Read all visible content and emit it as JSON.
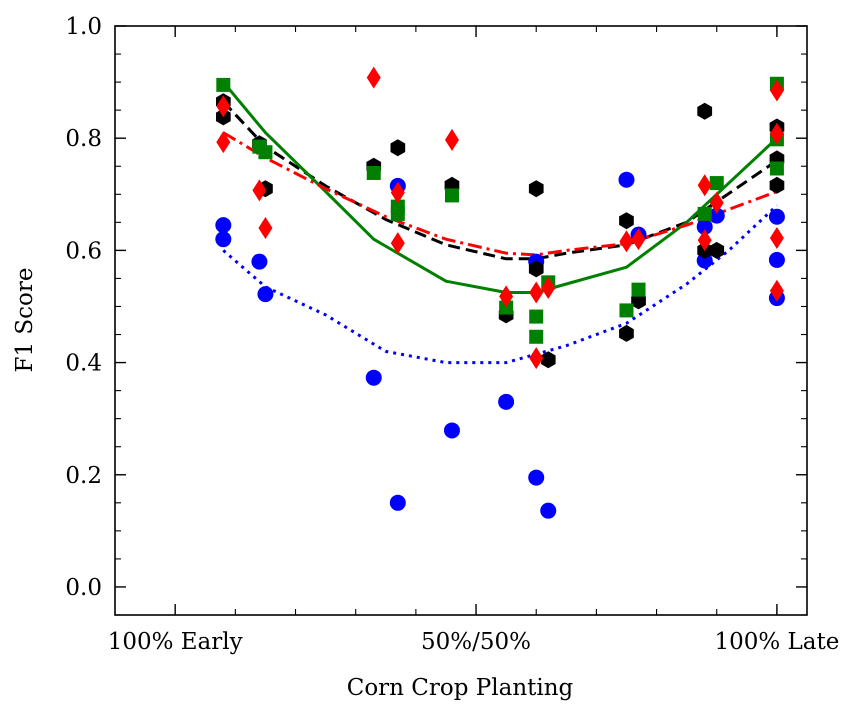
{
  "chart_data": {
    "type": "scatter",
    "xlabel": "Corn Crop Planting",
    "ylabel": "F1 Score",
    "xlim": [
      -0.1,
      1.05
    ],
    "ylim": [
      -0.05,
      1.0
    ],
    "xticks": [
      {
        "value": 0.0,
        "label": "100% Early"
      },
      {
        "value": 0.5,
        "label": "50%/50%"
      },
      {
        "value": 1.0,
        "label": "100% Late"
      }
    ],
    "yticks": [
      {
        "value": 0.0,
        "label": "0.0"
      },
      {
        "value": 0.2,
        "label": "0.2"
      },
      {
        "value": 0.4,
        "label": "0.4"
      },
      {
        "value": 0.6,
        "label": "0.6"
      },
      {
        "value": 0.8,
        "label": "0.8"
      },
      {
        "value": 1.0,
        "label": "1.0"
      }
    ],
    "grid": false,
    "series": [
      {
        "name": "blue",
        "color": "#0000ff",
        "marker": "circle",
        "points": [
          [
            0.08,
            0.645
          ],
          [
            0.08,
            0.62
          ],
          [
            0.14,
            0.58
          ],
          [
            0.15,
            0.522
          ],
          [
            0.33,
            0.373
          ],
          [
            0.37,
            0.715
          ],
          [
            0.37,
            0.15
          ],
          [
            0.46,
            0.279
          ],
          [
            0.55,
            0.33
          ],
          [
            0.6,
            0.195
          ],
          [
            0.6,
            0.58
          ],
          [
            0.62,
            0.136
          ],
          [
            0.75,
            0.726
          ],
          [
            0.77,
            0.628
          ],
          [
            0.88,
            0.582
          ],
          [
            0.88,
            0.642
          ],
          [
            0.9,
            0.662
          ],
          [
            1.0,
            0.66
          ],
          [
            1.0,
            0.583
          ],
          [
            1.0,
            0.515
          ]
        ],
        "trend": {
          "style": "dotted",
          "x": [
            0.08,
            0.15,
            0.25,
            0.35,
            0.45,
            0.55,
            0.65,
            0.75,
            0.85,
            0.92,
            1.0
          ],
          "y": [
            0.6,
            0.535,
            0.485,
            0.42,
            0.4,
            0.4,
            0.43,
            0.47,
            0.54,
            0.6,
            0.68
          ]
        }
      },
      {
        "name": "black",
        "color": "#000000",
        "marker": "hexagon",
        "points": [
          [
            0.08,
            0.865
          ],
          [
            0.08,
            0.838
          ],
          [
            0.14,
            0.79
          ],
          [
            0.15,
            0.71
          ],
          [
            0.33,
            0.75
          ],
          [
            0.37,
            0.783
          ],
          [
            0.46,
            0.716
          ],
          [
            0.55,
            0.485
          ],
          [
            0.6,
            0.71
          ],
          [
            0.6,
            0.567
          ],
          [
            0.62,
            0.405
          ],
          [
            0.75,
            0.653
          ],
          [
            0.75,
            0.452
          ],
          [
            0.77,
            0.51
          ],
          [
            0.88,
            0.848
          ],
          [
            0.88,
            0.6
          ],
          [
            0.9,
            0.6
          ],
          [
            1.0,
            0.82
          ],
          [
            1.0,
            0.763
          ],
          [
            1.0,
            0.716
          ]
        ],
        "trend": {
          "style": "dashed",
          "x": [
            0.08,
            0.15,
            0.25,
            0.35,
            0.45,
            0.55,
            0.6,
            0.65,
            0.75,
            0.85,
            1.0
          ],
          "y": [
            0.865,
            0.785,
            0.715,
            0.655,
            0.61,
            0.585,
            0.585,
            0.595,
            0.61,
            0.65,
            0.76
          ]
        }
      },
      {
        "name": "green",
        "color": "#008000",
        "marker": "square",
        "points": [
          [
            0.08,
            0.895
          ],
          [
            0.14,
            0.785
          ],
          [
            0.15,
            0.775
          ],
          [
            0.33,
            0.738
          ],
          [
            0.37,
            0.678
          ],
          [
            0.37,
            0.665
          ],
          [
            0.46,
            0.698
          ],
          [
            0.55,
            0.498
          ],
          [
            0.6,
            0.482
          ],
          [
            0.6,
            0.446
          ],
          [
            0.62,
            0.543
          ],
          [
            0.75,
            0.493
          ],
          [
            0.77,
            0.53
          ],
          [
            0.88,
            0.665
          ],
          [
            0.9,
            0.72
          ],
          [
            1.0,
            0.897
          ],
          [
            1.0,
            0.798
          ],
          [
            1.0,
            0.746
          ]
        ],
        "trend": {
          "style": "solid",
          "x": [
            0.08,
            0.15,
            0.25,
            0.33,
            0.37,
            0.45,
            0.55,
            0.6,
            0.65,
            0.75,
            0.85,
            1.0
          ],
          "y": [
            0.9,
            0.81,
            0.705,
            0.62,
            0.595,
            0.545,
            0.525,
            0.525,
            0.54,
            0.57,
            0.65,
            0.8
          ]
        }
      },
      {
        "name": "red",
        "color": "#ff0000",
        "marker": "diamond",
        "points": [
          [
            0.08,
            0.857
          ],
          [
            0.08,
            0.793
          ],
          [
            0.14,
            0.707
          ],
          [
            0.15,
            0.64
          ],
          [
            0.33,
            0.908
          ],
          [
            0.37,
            0.703
          ],
          [
            0.37,
            0.613
          ],
          [
            0.46,
            0.797
          ],
          [
            0.55,
            0.518
          ],
          [
            0.6,
            0.525
          ],
          [
            0.6,
            0.408
          ],
          [
            0.62,
            0.533
          ],
          [
            0.75,
            0.616
          ],
          [
            0.77,
            0.62
          ],
          [
            0.88,
            0.716
          ],
          [
            0.88,
            0.618
          ],
          [
            0.9,
            0.685
          ],
          [
            1.0,
            0.885
          ],
          [
            1.0,
            0.808
          ],
          [
            1.0,
            0.622
          ],
          [
            1.0,
            0.528
          ]
        ],
        "trend": {
          "style": "dashdot",
          "x": [
            0.08,
            0.15,
            0.25,
            0.35,
            0.45,
            0.55,
            0.6,
            0.65,
            0.75,
            0.85,
            1.0
          ],
          "y": [
            0.81,
            0.765,
            0.71,
            0.66,
            0.62,
            0.595,
            0.592,
            0.6,
            0.612,
            0.645,
            0.705
          ]
        }
      }
    ]
  }
}
